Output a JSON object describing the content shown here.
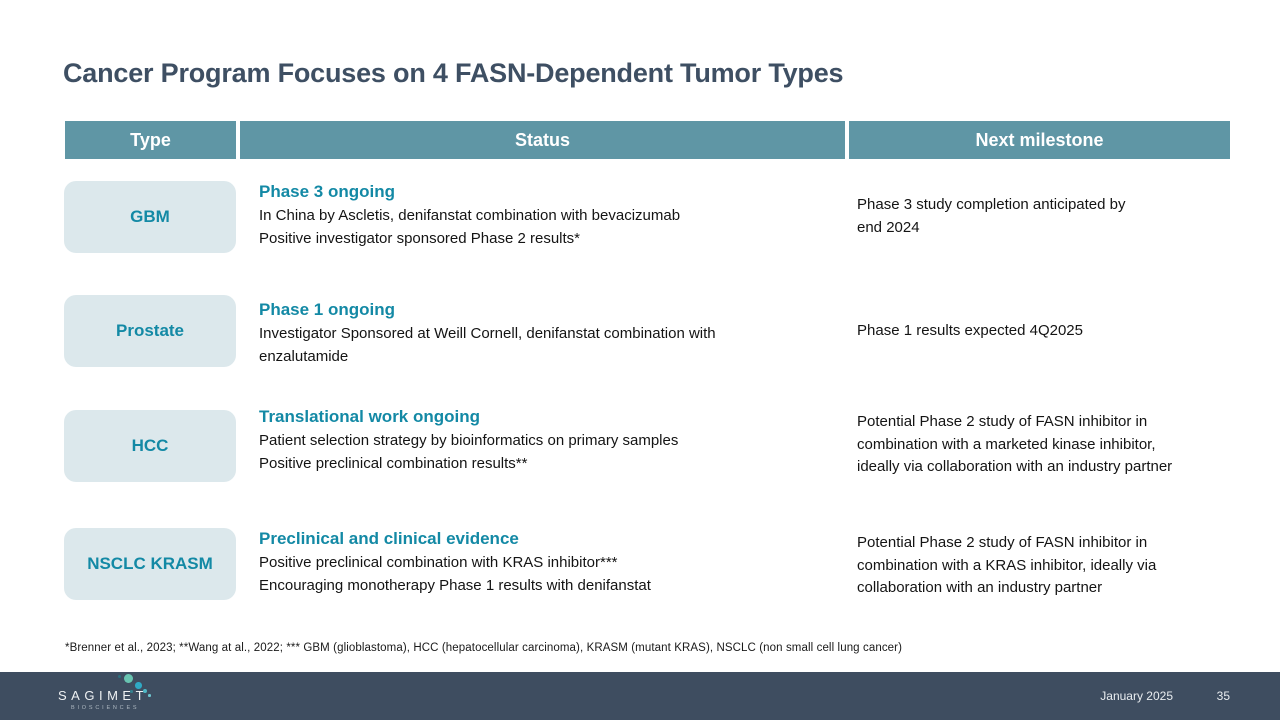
{
  "slide": {
    "title": "Cancer Program Focuses on 4 FASN-Dependent Tumor Types"
  },
  "table": {
    "headers": {
      "type": "Type",
      "status": "Status",
      "milestone": "Next milestone"
    },
    "rows": [
      {
        "type": "GBM",
        "status_heading": "Phase 3 ongoing",
        "status_lines": [
          "In China by Ascletis, denifanstat combination with bevacizumab",
          "Positive investigator sponsored Phase 2 results*"
        ],
        "milestone_lines": [
          "Phase 3 study completion anticipated by",
          "end 2024"
        ]
      },
      {
        "type": "Prostate",
        "status_heading": "Phase 1 ongoing",
        "status_lines": [
          "Investigator Sponsored at Weill Cornell, denifanstat combination with",
          "enzalutamide"
        ],
        "milestone_lines": [
          "Phase 1 results expected 4Q2025"
        ]
      },
      {
        "type": "HCC",
        "status_heading": "Translational work ongoing",
        "status_lines": [
          "Patient selection strategy by bioinformatics on primary samples",
          "Positive preclinical combination results**"
        ],
        "milestone_lines": [
          "Potential Phase 2 study of FASN inhibitor in",
          "combination with a marketed kinase inhibitor,",
          "ideally via collaboration with an industry partner"
        ]
      },
      {
        "type": "NSCLC KRASM",
        "status_heading": "Preclinical and clinical evidence",
        "status_lines": [
          "Positive preclinical combination with KRAS inhibitor***",
          "Encouraging monotherapy Phase 1 results with denifanstat"
        ],
        "milestone_lines": [
          "Potential Phase 2 study of FASN inhibitor in",
          "combination with a KRAS inhibitor, ideally via",
          "collaboration with an industry partner"
        ]
      }
    ]
  },
  "footnote": "*Brenner et al., 2023; **Wang at al., 2022; *** GBM (glioblastoma), HCC (hepatocellular carcinoma), KRASM (mutant KRAS), NSCLC (non small cell lung cancer)",
  "footer": {
    "logo_primary": "SAGIMET",
    "logo_secondary": "BIOSCIENCES",
    "date": "January 2025",
    "page": "35"
  },
  "colors": {
    "title_text": "#3e4f63",
    "header_bg": "#5f96a5",
    "header_text": "#ffffff",
    "card_bg": "#dce8ec",
    "accent_teal_text": "#1389a5",
    "body_text": "#141414",
    "footer_bg": "#3e4d60",
    "footer_text": "#e9edf0",
    "logo_dot_green": "#68c4b1",
    "logo_dot_cyan": "#2fa9c4"
  }
}
